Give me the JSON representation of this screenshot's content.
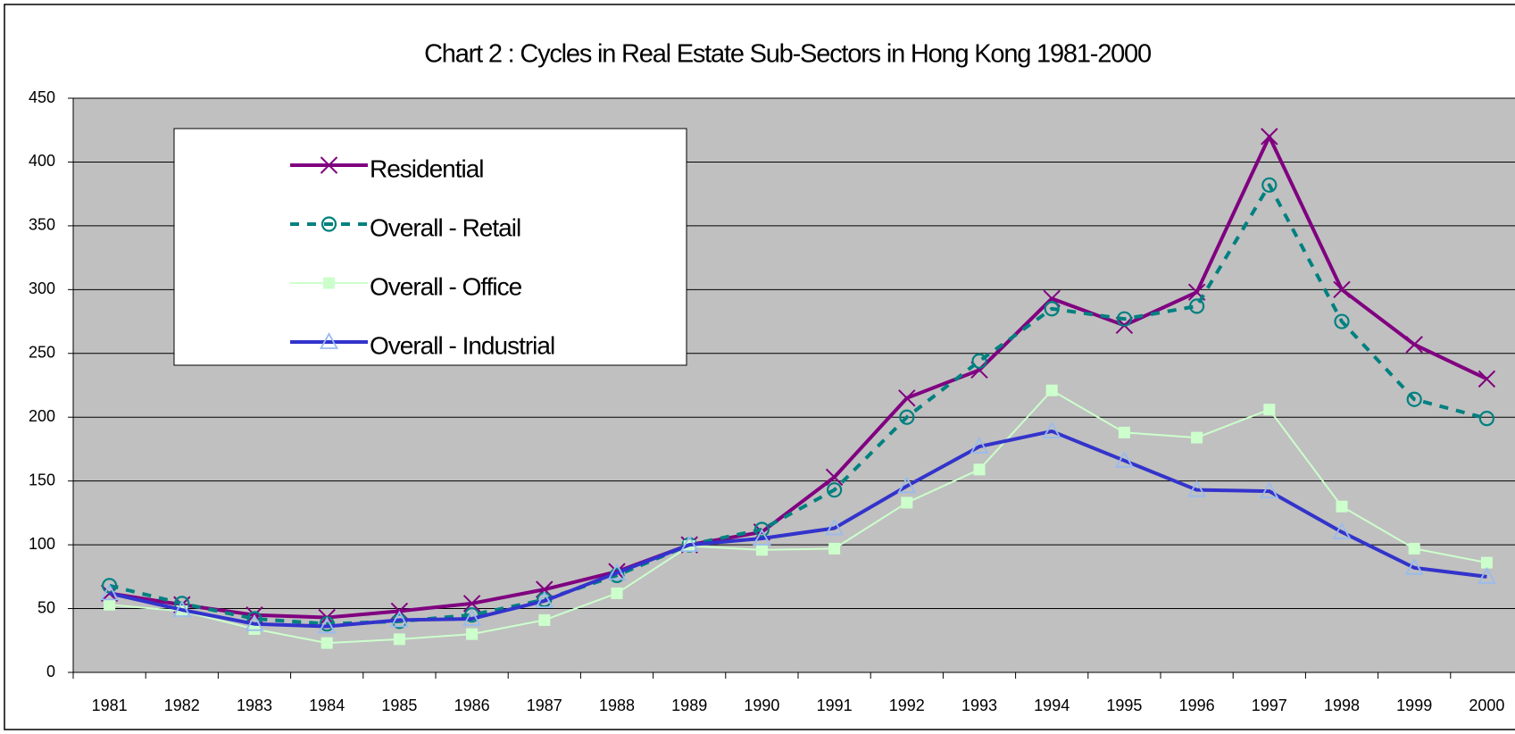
{
  "chart_data": {
    "type": "line",
    "title": "Chart 2 : Cycles in Real Estate Sub-Sectors in Hong Kong 1981-2000",
    "categories": [
      "1981",
      "1982",
      "1983",
      "1984",
      "1985",
      "1986",
      "1987",
      "1988",
      "1989",
      "1990",
      "1991",
      "1992",
      "1993",
      "1994",
      "1995",
      "1996",
      "1997",
      "1998",
      "1999",
      "2000"
    ],
    "series": [
      {
        "name": "Residential",
        "color": "#800080",
        "marker": "x",
        "line_style": "solid",
        "values": [
          62,
          53,
          45,
          43,
          48,
          54,
          65,
          79,
          100,
          110,
          153,
          215,
          237,
          293,
          272,
          298,
          420,
          300,
          257,
          230
        ]
      },
      {
        "name": "Overall - Retail",
        "color": "#008080",
        "marker": "circle",
        "line_style": "dashed",
        "values": [
          68,
          54,
          42,
          38,
          40,
          45,
          57,
          76,
          100,
          112,
          143,
          200,
          244,
          285,
          277,
          287,
          382,
          275,
          214,
          199
        ]
      },
      {
        "name": "Overall - Office",
        "color": "#ccffcc",
        "marker": "square",
        "line_style": "solid",
        "values": [
          53,
          48,
          34,
          23,
          26,
          30,
          41,
          62,
          99,
          96,
          97,
          133,
          159,
          221,
          188,
          184,
          206,
          130,
          97,
          86
        ]
      },
      {
        "name": "Overall - Industrial",
        "color": "#3333cc",
        "marker": "triangle",
        "line_style": "solid",
        "values": [
          62,
          49,
          38,
          36,
          41,
          42,
          56,
          78,
          100,
          105,
          113,
          146,
          177,
          189,
          166,
          143,
          142,
          110,
          82,
          75
        ]
      }
    ],
    "ylim": [
      0,
      450
    ],
    "yticks": [
      0,
      50,
      100,
      150,
      200,
      250,
      300,
      350,
      400,
      450
    ],
    "grid": true,
    "legend": "upper left",
    "plot_background": "#c0c0c0"
  }
}
